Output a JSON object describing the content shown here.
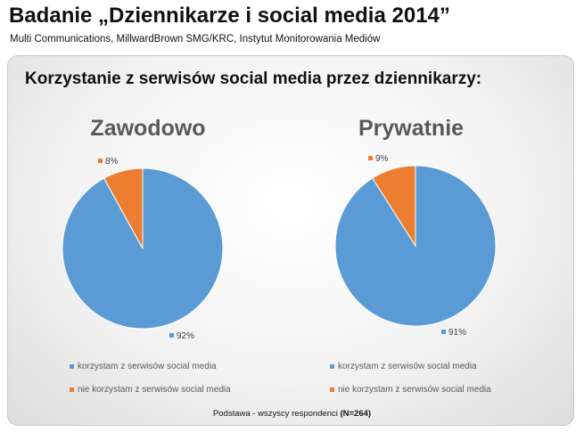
{
  "header": {
    "title": "Badanie „Dziennikarze i social media 2014”",
    "subtitle": "Multi Communications, MillwardBrown SMG/KRC, Instytut Monitorowania Mediów"
  },
  "panel": {
    "title": "Korzystanie z serwisów social media przez dziennikarzy:"
  },
  "footer": {
    "text": "Podstawa - wszyscy respondenci ",
    "n": "(N=264)"
  },
  "colors": {
    "blue": "#5b9bd5",
    "orange": "#ed7d31"
  },
  "chart_data": [
    {
      "type": "pie",
      "title": "Zawodowo",
      "categories": [
        "korzystam z serwisów social media",
        "nie korzystam z serwisów social media"
      ],
      "values": [
        92,
        8
      ],
      "labels": [
        "92%",
        "8%"
      ],
      "colors": [
        "#5b9bd5",
        "#ed7d31"
      ],
      "legend": "bottom"
    },
    {
      "type": "pie",
      "title": "Prywatnie",
      "categories": [
        "korzystam z serwisów social media",
        "nie korzystam z serwisów social media"
      ],
      "values": [
        91,
        9
      ],
      "labels": [
        "91%",
        "9%"
      ],
      "colors": [
        "#5b9bd5",
        "#ed7d31"
      ],
      "legend": "bottom"
    }
  ]
}
